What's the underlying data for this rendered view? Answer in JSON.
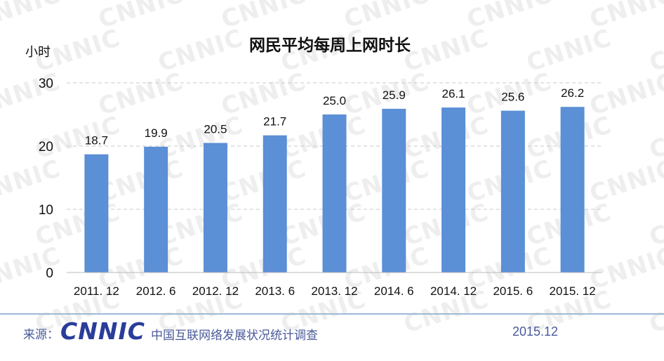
{
  "chart_data": {
    "type": "bar",
    "title": "网民平均每周上网时长",
    "ylabel": "小时",
    "xlabel": "",
    "categories": [
      "2011. 12",
      "2012. 6",
      "2012. 12",
      "2013. 6",
      "2013. 12",
      "2014. 6",
      "2014. 12",
      "2015. 6",
      "2015. 12"
    ],
    "values": [
      18.7,
      19.9,
      20.5,
      21.7,
      25.0,
      25.9,
      26.1,
      25.6,
      26.2
    ],
    "data_labels": [
      "18.7",
      "19.9",
      "20.5",
      "21.7",
      "25.0",
      "25.9",
      "26.1",
      "25.6",
      "26.2"
    ],
    "ylim": [
      0,
      30
    ],
    "yticks": [
      0,
      10,
      20,
      30
    ],
    "grid": "dashed-horizontal",
    "bar_color": "#5b8fd6"
  },
  "watermark": "CNNIC",
  "footer": {
    "source_label": "来源：",
    "logo_text": "CNNIC",
    "org_text": "中国互联网络发展状况统计调查",
    "date": "2015.12"
  },
  "colors": {
    "bar": "#5b8fd6",
    "footer_text": "#4a5a9a",
    "logo": "#2a3d9a",
    "footer_line": "#9fb8d6"
  }
}
